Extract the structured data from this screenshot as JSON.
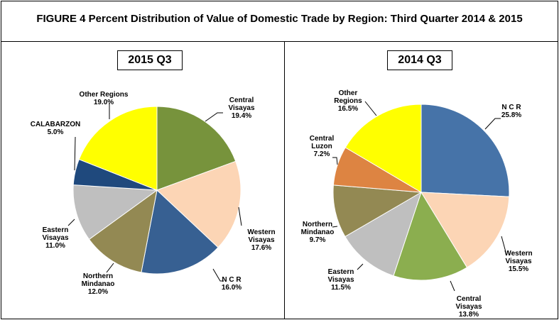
{
  "chart_data": [
    {
      "type": "pie",
      "title": "2015 Q3",
      "start": "top",
      "direction": "clockwise",
      "slices": [
        {
          "label": "Central Visayas",
          "value": 19.4,
          "display": "19.4%",
          "color": "#77933C"
        },
        {
          "label": "Western Visayas",
          "value": 17.6,
          "display": "17.6%",
          "color": "#FCD5B5"
        },
        {
          "label": "N C R",
          "value": 16.0,
          "display": "16.0%",
          "color": "#376092"
        },
        {
          "label": "Northern Mindanao",
          "value": 12.0,
          "display": "12.0%",
          "color": "#938953"
        },
        {
          "label": "Eastern Visayas",
          "value": 11.0,
          "display": "11.0%",
          "color": "#BFBFBF"
        },
        {
          "label": "CALABARZON",
          "value": 5.0,
          "display": "5.0%",
          "color": "#1F497D"
        },
        {
          "label": "Other Regions",
          "value": 19.0,
          "display": "19.0%",
          "color": "#FFFF00"
        }
      ]
    },
    {
      "type": "pie",
      "title": "2014 Q3",
      "start": "top",
      "direction": "clockwise",
      "slices": [
        {
          "label": "N C R",
          "value": 25.8,
          "display": "25.8%",
          "color": "#4673A8"
        },
        {
          "label": "Western Visayas",
          "value": 15.5,
          "display": "15.5%",
          "color": "#FCD5B5"
        },
        {
          "label": "Central Visayas",
          "value": 13.8,
          "display": "13.8%",
          "color": "#8BAE4F"
        },
        {
          "label": "Eastern Visayas",
          "value": 11.5,
          "display": "11.5%",
          "color": "#BFBFBF"
        },
        {
          "label": "Northern Mindanao",
          "value": 9.7,
          "display": "9.7%",
          "color": "#938953"
        },
        {
          "label": "Central Luzon",
          "value": 7.2,
          "display": "7.2%",
          "color": "#DD8442"
        },
        {
          "label": "Other Regions",
          "value": 16.5,
          "display": "16.5%",
          "color": "#FFFF00"
        }
      ]
    }
  ],
  "figure_title": "FIGURE 4  Percent Distribution of Value of Domestic Trade by Region:  Third Quarter 2014 & 2015"
}
